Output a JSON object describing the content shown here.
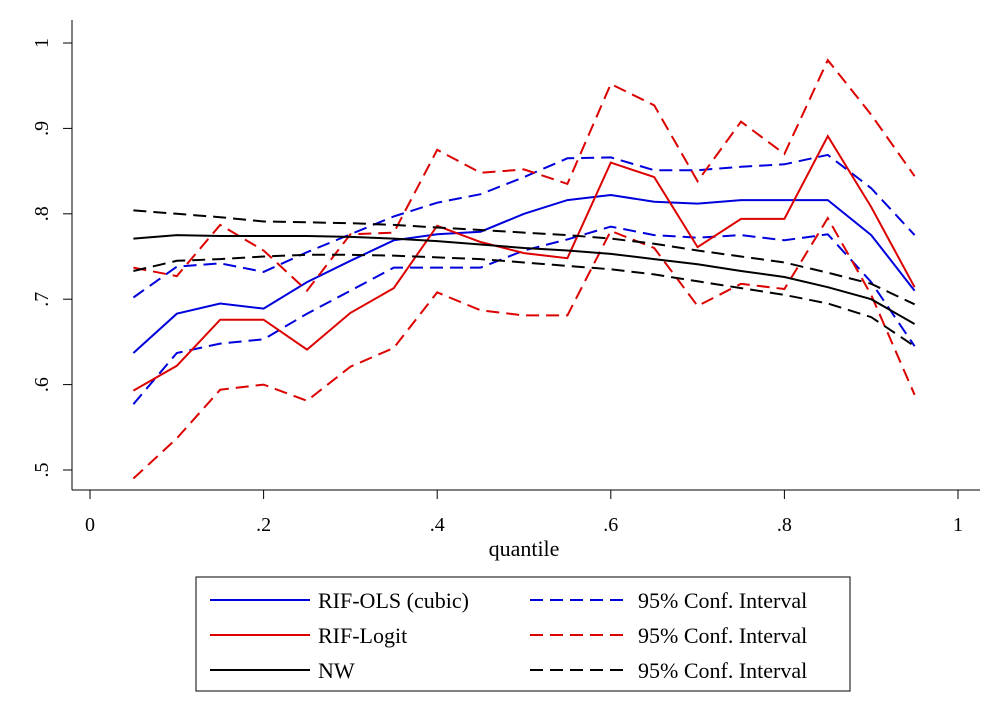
{
  "chart_data": {
    "type": "line",
    "title": "",
    "xlabel": "quantile",
    "ylabel": "",
    "xlim": [
      0,
      1
    ],
    "ylim": [
      0.5,
      1
    ],
    "grid": false,
    "legend_position": "bottom",
    "x_ticks": [
      {
        "value": 0,
        "label": "0"
      },
      {
        "value": 0.2,
        "label": ".2"
      },
      {
        "value": 0.4,
        "label": ".4"
      },
      {
        "value": 0.6,
        "label": ".6"
      },
      {
        "value": 0.8,
        "label": ".8"
      },
      {
        "value": 1,
        "label": "1"
      }
    ],
    "y_ticks": [
      {
        "value": 0.5,
        "label": ".5"
      },
      {
        "value": 0.6,
        "label": ".6"
      },
      {
        "value": 0.7,
        "label": ".7"
      },
      {
        "value": 0.8,
        "label": ".8"
      },
      {
        "value": 0.9,
        "label": ".9"
      },
      {
        "value": 1,
        "label": "1"
      }
    ],
    "x": [
      0.05,
      0.1,
      0.15,
      0.2,
      0.25,
      0.3,
      0.35,
      0.4,
      0.45,
      0.5,
      0.55,
      0.6,
      0.65,
      0.7,
      0.75,
      0.8,
      0.85,
      0.9,
      0.95
    ],
    "series": [
      {
        "key": "rif_ols",
        "name": "RIF-OLS (cubic)",
        "color": "#0000dd",
        "dash": false,
        "values": [
          0.637,
          0.683,
          0.695,
          0.689,
          0.72,
          0.745,
          0.769,
          0.776,
          0.779,
          0.8,
          0.816,
          0.822,
          0.814,
          0.812,
          0.816,
          0.816,
          0.816,
          0.775,
          0.71
        ]
      },
      {
        "key": "rif_ols_ci_hi",
        "name": "95% Conf. Interval",
        "color": "#0000dd",
        "dash": true,
        "values": [
          0.702,
          0.738,
          0.742,
          0.732,
          0.755,
          0.776,
          0.797,
          0.813,
          0.823,
          0.843,
          0.865,
          0.866,
          0.851,
          0.851,
          0.855,
          0.858,
          0.869,
          0.83,
          0.775
        ]
      },
      {
        "key": "rif_ols_ci_lo",
        "name": "95% Conf. Interval",
        "color": "#0000dd",
        "dash": true,
        "values": [
          0.577,
          0.637,
          0.648,
          0.653,
          0.683,
          0.71,
          0.737,
          0.737,
          0.737,
          0.757,
          0.77,
          0.785,
          0.775,
          0.772,
          0.775,
          0.769,
          0.776,
          0.72,
          0.645
        ]
      },
      {
        "key": "rif_logit",
        "name": "RIF-Logit",
        "color": "#dd0000",
        "dash": false,
        "values": [
          0.593,
          0.622,
          0.676,
          0.676,
          0.641,
          0.684,
          0.713,
          0.786,
          0.767,
          0.754,
          0.748,
          0.86,
          0.843,
          0.761,
          0.794,
          0.794,
          0.891,
          0.808,
          0.714
        ]
      },
      {
        "key": "rif_logit_ci_hi",
        "name": "95% Conf. Interval",
        "color": "#dd0000",
        "dash": true,
        "values": [
          0.737,
          0.727,
          0.787,
          0.757,
          0.71,
          0.776,
          0.778,
          0.875,
          0.848,
          0.852,
          0.835,
          0.952,
          0.927,
          0.838,
          0.908,
          0.87,
          0.98,
          0.916,
          0.844
        ]
      },
      {
        "key": "rif_logit_ci_lo",
        "name": "95% Conf. Interval",
        "color": "#dd0000",
        "dash": true,
        "values": [
          0.49,
          0.537,
          0.594,
          0.6,
          0.581,
          0.621,
          0.643,
          0.708,
          0.687,
          0.681,
          0.681,
          0.78,
          0.76,
          0.692,
          0.718,
          0.712,
          0.795,
          0.705,
          0.588
        ]
      },
      {
        "key": "nw",
        "name": "NW",
        "color": "#000000",
        "dash": false,
        "values": [
          0.771,
          0.775,
          0.774,
          0.774,
          0.774,
          0.773,
          0.771,
          0.768,
          0.764,
          0.76,
          0.757,
          0.753,
          0.747,
          0.741,
          0.733,
          0.726,
          0.714,
          0.7,
          0.671
        ]
      },
      {
        "key": "nw_ci_hi",
        "name": "95% Conf. Interval",
        "color": "#000000",
        "dash": true,
        "values": [
          0.804,
          0.8,
          0.796,
          0.791,
          0.79,
          0.789,
          0.787,
          0.784,
          0.781,
          0.778,
          0.775,
          0.771,
          0.765,
          0.757,
          0.75,
          0.743,
          0.731,
          0.718,
          0.694
        ]
      },
      {
        "key": "nw_ci_lo",
        "name": "95% Conf. Interval",
        "color": "#000000",
        "dash": true,
        "values": [
          0.733,
          0.745,
          0.747,
          0.75,
          0.752,
          0.752,
          0.751,
          0.749,
          0.747,
          0.743,
          0.739,
          0.735,
          0.729,
          0.721,
          0.713,
          0.705,
          0.695,
          0.679,
          0.645
        ]
      }
    ],
    "legend": [
      {
        "label": "RIF-OLS (cubic)",
        "color": "#0000dd",
        "dash": false
      },
      {
        "label": "95% Conf. Interval",
        "color": "#0000dd",
        "dash": true
      },
      {
        "label": "RIF-Logit",
        "color": "#dd0000",
        "dash": false
      },
      {
        "label": "95% Conf. Interval",
        "color": "#dd0000",
        "dash": true
      },
      {
        "label": "NW",
        "color": "#000000",
        "dash": false
      },
      {
        "label": "95% Conf. Interval",
        "color": "#000000",
        "dash": true
      }
    ]
  }
}
